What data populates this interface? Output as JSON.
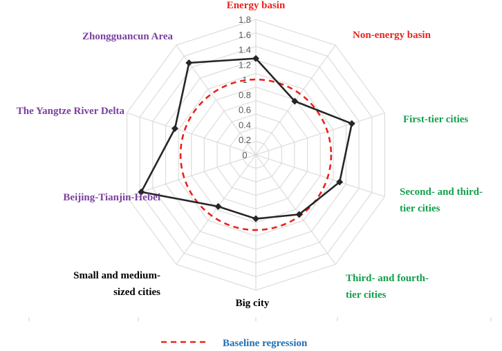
{
  "chart_data": {
    "type": "radar",
    "axes": [
      {
        "label_lines": [
          "Energy basin"
        ],
        "color": "#e8231c"
      },
      {
        "label_lines": [
          "Non-energy basin"
        ],
        "color": "#e8231c"
      },
      {
        "label_lines": [
          "First-tier cities"
        ],
        "color": "#12a04b"
      },
      {
        "label_lines": [
          "Second- and third-",
          "tier cities"
        ],
        "color": "#12a04b"
      },
      {
        "label_lines": [
          "Third- and fourth-",
          "tier cities"
        ],
        "color": "#12a04b"
      },
      {
        "label_lines": [
          "Big city"
        ],
        "color": "#000000"
      },
      {
        "label_lines": [
          "Small and medium-",
          "sized cities"
        ],
        "color": "#000000"
      },
      {
        "label_lines": [
          "Beijing-Tianjin-Hebei"
        ],
        "color": "#7b3fa0"
      },
      {
        "label_lines": [
          "The Yangtze River Delta"
        ],
        "color": "#7b3fa0"
      },
      {
        "label_lines": [
          "Zhongguancun Area"
        ],
        "color": "#7b3fa0"
      }
    ],
    "ticks": [
      "0",
      "0.2",
      "0.4",
      "0.6",
      "0.8",
      "1",
      "1.2",
      "1.4",
      "1.6",
      "1.8"
    ],
    "rmax": 1.8,
    "series": [
      {
        "values": [
          1.28,
          0.88,
          1.34,
          1.17,
          0.98,
          0.85,
          0.85,
          1.6,
          1.13,
          1.51
        ],
        "color": "#262626"
      },
      {
        "name": "Baseline regression",
        "values": [
          1,
          1,
          1,
          1,
          1,
          1,
          1,
          1,
          1,
          1
        ],
        "color": "#e8231c"
      }
    ],
    "legend": {
      "position": "bottom",
      "label": "Baseline regression",
      "text_color": "#1f6fb4"
    }
  }
}
